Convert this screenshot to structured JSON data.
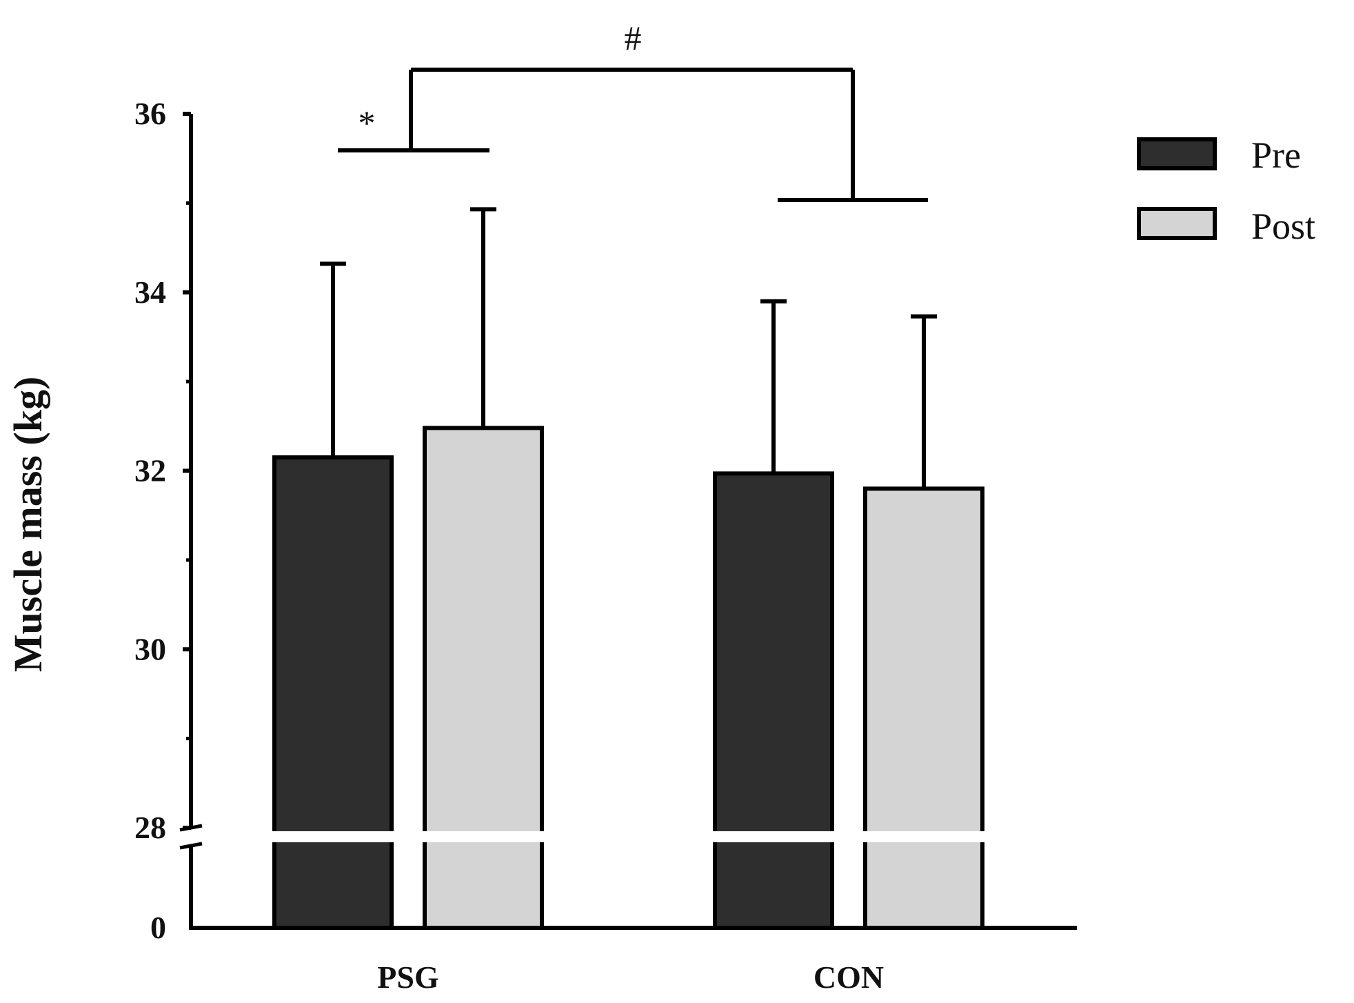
{
  "chart_data": {
    "type": "bar",
    "title": "",
    "xlabel": "",
    "ylabel": "Muscle mass (kg)",
    "ylim": [
      28,
      36
    ],
    "axis_break": {
      "below": 28,
      "base_label": "0"
    },
    "yticks": [
      "0",
      "28",
      "30",
      "32",
      "34",
      "36"
    ],
    "categories": [
      "PSG",
      "CON"
    ],
    "series": [
      {
        "name": "Pre",
        "color": "#2e2e2e",
        "values": [
          32.15,
          31.97
        ],
        "errors": [
          2.17,
          1.93
        ]
      },
      {
        "name": "Post",
        "color": "#d4d4d4",
        "values": [
          32.48,
          31.8
        ],
        "errors": [
          2.45,
          1.93
        ]
      }
    ],
    "legend_position": "top-right",
    "grid": false,
    "annotations": [
      {
        "symbol": "*",
        "meaning": "PSG Pre vs Post"
      },
      {
        "symbol": "#",
        "meaning": "PSG vs CON"
      }
    ]
  }
}
